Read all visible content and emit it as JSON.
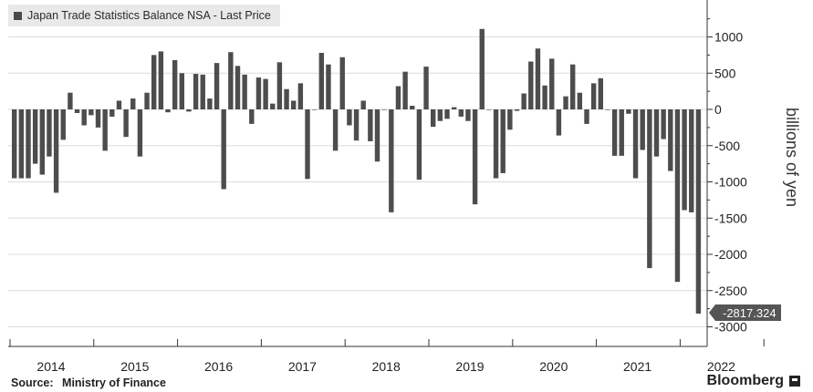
{
  "legend": {
    "label": "Japan Trade Statistics Balance NSA - Last Price"
  },
  "source": {
    "label": "Source:",
    "text": "Ministry of Finance"
  },
  "brand": {
    "name": "Bloomberg"
  },
  "last_value_label": "-2817.324",
  "colors": {
    "bar": "#4d4d4d",
    "grid": "#dcdcdc",
    "axis": "#333333",
    "tag": "#555555"
  },
  "chart_data": {
    "type": "bar",
    "title": "Japan Trade Statistics Balance NSA - Last Price",
    "ylabel": "billions of yen",
    "ylim": [
      -3000,
      1000
    ],
    "yticks": [
      1000,
      500,
      0,
      -500,
      -1000,
      -1500,
      -2000,
      -2500,
      -3000
    ],
    "grid": true,
    "x_tick_labels": [
      "2014",
      "2015",
      "2016",
      "2017",
      "2018",
      "2019",
      "2020",
      "2021",
      "2022"
    ],
    "start": "2014-01",
    "frequency": "monthly",
    "series": [
      {
        "values": [
          -950,
          -950,
          -950,
          -750,
          -900,
          -650,
          -1150,
          -420,
          230,
          -50,
          -220,
          -80,
          -250,
          -570,
          -100,
          120,
          -380,
          150,
          -650,
          230,
          750,
          800,
          -40,
          680,
          500,
          -30,
          490,
          480,
          150,
          640,
          -1100,
          790,
          600,
          480,
          -200,
          440,
          420,
          80,
          650,
          280,
          120,
          360,
          -960,
          0,
          780,
          620,
          -570,
          720,
          -220,
          -430,
          120,
          -440,
          -720,
          0,
          -1420,
          320,
          520,
          50,
          -970,
          590,
          -240,
          -160,
          -130,
          30,
          -100,
          -160,
          -1310,
          1110,
          0,
          -950,
          -880,
          -280,
          -20,
          220,
          660,
          840,
          330,
          700,
          -360,
          180,
          620,
          230,
          -200,
          360,
          430,
          0,
          -640,
          -640,
          -60,
          -950,
          -560,
          -2190,
          -650,
          -410,
          -850,
          -2380,
          -1390,
          -1420,
          -2817.324
        ]
      }
    ]
  }
}
